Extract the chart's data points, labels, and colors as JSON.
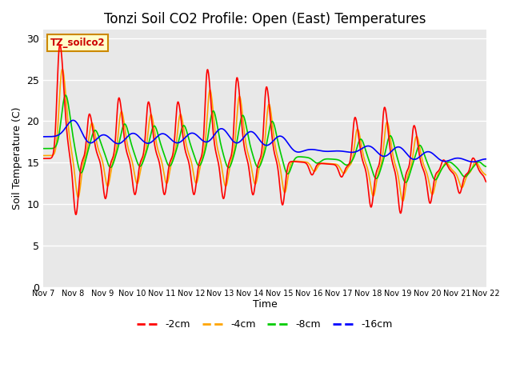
{
  "title": "Tonzi Soil CO2 Profile: Open (East) Temperatures",
  "ylabel": "Soil Temperature (C)",
  "xlabel": "Time",
  "watermark": "TZ_soilco2",
  "ylim": [
    0,
    31
  ],
  "yticks": [
    0,
    5,
    10,
    15,
    20,
    25,
    30
  ],
  "colors": {
    "-2cm": "#ff0000",
    "-4cm": "#ffa500",
    "-8cm": "#00cc00",
    "-16cm": "#0000ff"
  },
  "legend_labels": [
    "-2cm",
    "-4cm",
    "-8cm",
    "-16cm"
  ],
  "xtick_labels": [
    "Nov 7",
    "Nov 8",
    "Nov 9",
    "Nov 10",
    "Nov 11",
    "Nov 12",
    "Nov 13",
    "Nov 14",
    "Nov 15",
    "Nov 16",
    "Nov 17",
    "Nov 18",
    "Nov 19",
    "Nov 20",
    "Nov 21",
    "Nov 22"
  ],
  "bg_color": "#e8e8e8",
  "title_fontsize": 12
}
